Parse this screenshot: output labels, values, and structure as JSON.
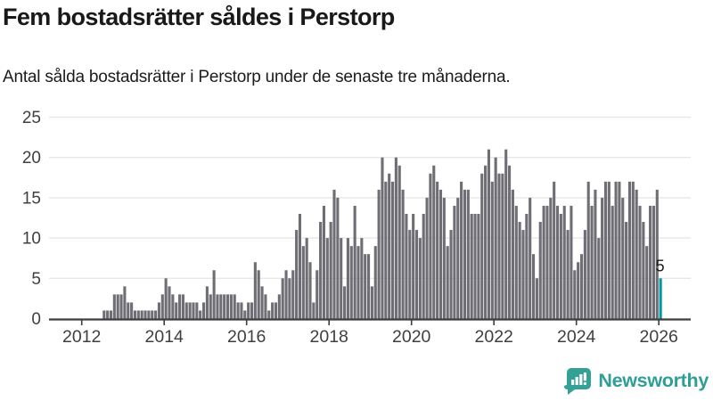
{
  "header": {
    "title": "Fem bostadsrätter såldes i Perstorp",
    "subtitle": "Antal sålda bostadsrätter i Perstorp under de senaste tre månaderna."
  },
  "chart_data": {
    "type": "bar",
    "title": "Fem bostadsrätter såldes i Perstorp",
    "subtitle": "Antal sålda bostadsrätter i Perstorp under de senaste tre månaderna.",
    "xlabel": "",
    "ylabel": "",
    "ylim": [
      0,
      25
    ],
    "yticks": [
      0,
      5,
      10,
      15,
      20,
      25
    ],
    "xtick_years": [
      2012,
      2014,
      2016,
      2018,
      2020,
      2022,
      2024,
      2026
    ],
    "grid": true,
    "start_month": "2012-07",
    "end_month": "2026-01",
    "values": [
      1,
      1,
      1,
      3,
      3,
      3,
      4,
      2,
      2,
      1,
      1,
      1,
      1,
      1,
      1,
      1,
      2,
      3,
      5,
      4,
      3,
      2,
      3,
      3,
      2,
      2,
      2,
      2,
      1,
      2,
      4,
      3,
      6,
      3,
      3,
      3,
      3,
      3,
      3,
      2,
      2,
      1,
      2,
      2,
      7,
      6,
      4,
      3,
      1,
      2,
      2,
      3,
      5,
      6,
      5,
      6,
      11,
      13,
      9,
      10,
      7,
      2,
      6,
      12,
      14,
      10,
      12,
      16,
      15,
      10,
      4,
      10,
      9,
      14,
      9,
      10,
      8,
      8,
      4,
      9,
      16,
      20,
      17,
      18,
      17,
      20,
      19,
      16,
      13,
      11,
      13,
      11,
      10,
      13,
      15,
      18,
      19,
      17,
      16,
      15,
      9,
      11,
      14,
      15,
      17,
      16,
      16,
      13,
      13,
      13,
      18,
      19,
      21,
      17,
      20,
      18,
      18,
      21,
      19,
      16,
      14,
      12,
      11,
      13,
      15,
      8,
      5,
      12,
      14,
      14,
      15,
      17,
      14,
      13,
      14,
      11,
      14,
      6,
      7,
      8,
      11,
      17,
      14,
      16,
      10,
      15,
      17,
      17,
      14,
      17,
      17,
      15,
      12,
      17,
      17,
      16,
      14,
      12,
      9,
      14,
      14,
      16,
      5
    ],
    "annotation": {
      "text": "5",
      "month": "2026-01"
    },
    "highlight_last": true,
    "colors": {
      "bar": "#6e6e74",
      "highlight": "#00999f",
      "grid": "#e7e7e7",
      "axis": "#3d3d3d",
      "tick_text": "#3f3f3f",
      "annotation_text": "#1a1a1a"
    }
  },
  "logo": {
    "name": "Newsworthy",
    "color": "#2f9e96",
    "icon": "newsworthy-speech-bubble-bar-chart-icon"
  }
}
